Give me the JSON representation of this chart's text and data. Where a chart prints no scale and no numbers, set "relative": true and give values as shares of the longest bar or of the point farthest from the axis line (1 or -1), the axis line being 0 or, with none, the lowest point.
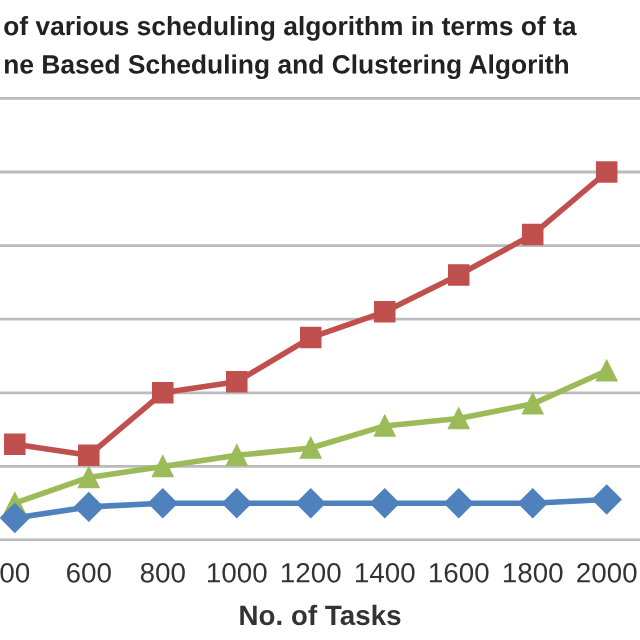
{
  "chart_data": {
    "type": "line",
    "title": "of various scheduling algorithm in terms of ta",
    "subtitle": "ne Based Scheduling and Clustering Algorith",
    "xlabel": "No. of Tasks",
    "categories": [
      "00",
      "600",
      "800",
      "1000",
      "1200",
      "1400",
      "1600",
      "1800",
      "2000"
    ],
    "relative": true,
    "grid": "y",
    "legend": false,
    "series": [
      {
        "color": "#c0504d",
        "marker": "square",
        "values": [
          0.26,
          0.23,
          0.4,
          0.43,
          0.55,
          0.62,
          0.72,
          0.83,
          1.0
        ]
      },
      {
        "color": "#9bbb59",
        "marker": "triangle",
        "values": [
          0.1,
          0.17,
          0.2,
          0.23,
          0.25,
          0.31,
          0.33,
          0.37,
          0.46
        ]
      },
      {
        "color": "#4f81bd",
        "marker": "diamond",
        "values": [
          0.06,
          0.09,
          0.1,
          0.1,
          0.1,
          0.1,
          0.1,
          0.1,
          0.11
        ]
      }
    ]
  }
}
